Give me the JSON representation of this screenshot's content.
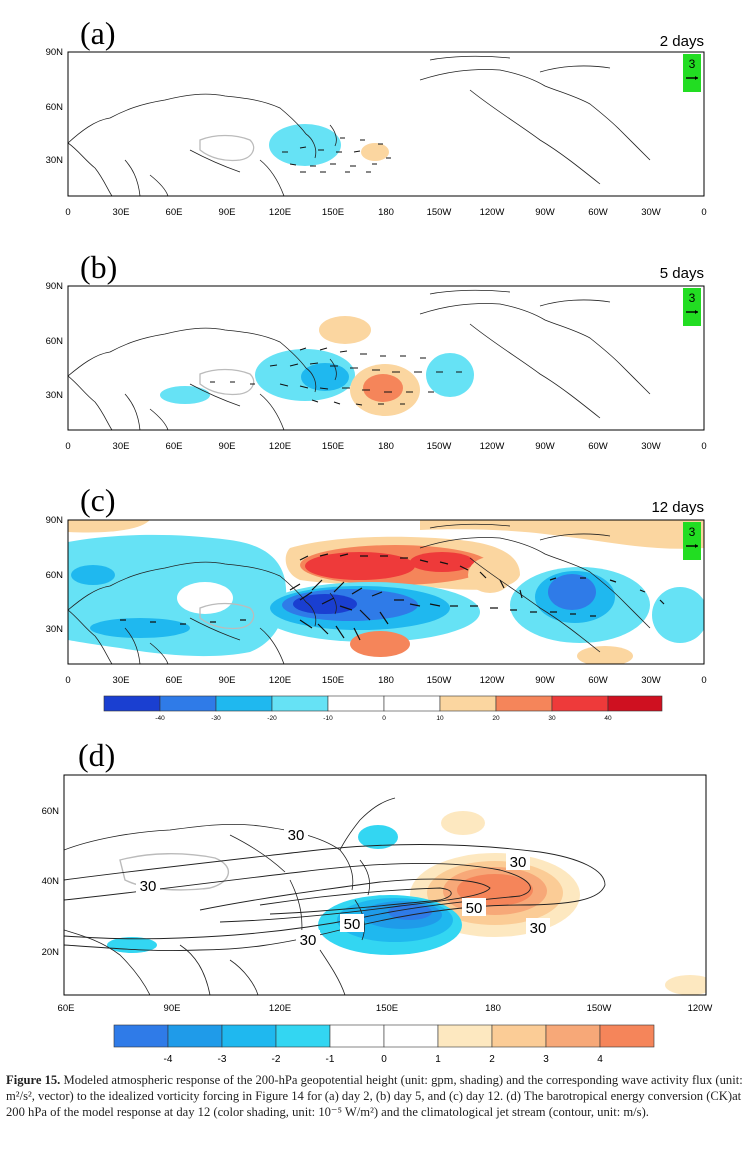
{
  "panels": [
    {
      "letter": "(a)",
      "days_label": "2 days",
      "vector_ref": "3"
    },
    {
      "letter": "(b)",
      "days_label": "5 days",
      "vector_ref": "3"
    },
    {
      "letter": "(c)",
      "days_label": "12 days",
      "vector_ref": "3"
    },
    {
      "letter": "(d)"
    }
  ],
  "map_axes_abc": {
    "y_ticks": [
      "90N",
      "60N",
      "30N"
    ],
    "x_ticks": [
      "0",
      "30E",
      "60E",
      "90E",
      "120E",
      "150E",
      "180",
      "150W",
      "120W",
      "90W",
      "60W",
      "30W",
      "0"
    ]
  },
  "map_axes_d": {
    "y_ticks": [
      "60N",
      "40N",
      "20N"
    ],
    "x_ticks": [
      "60E",
      "90E",
      "120E",
      "150E",
      "180",
      "150W",
      "120W"
    ]
  },
  "colorbar_c": {
    "labels": [
      "-40",
      "-30",
      "-20",
      "-10",
      "0",
      "10",
      "20",
      "30",
      "40"
    ],
    "colors": [
      "#1a3fd1",
      "#2f7be8",
      "#1fb8ef",
      "#66e2f5",
      "#ffffff",
      "#ffffff",
      "#fbd6a0",
      "#f5855a",
      "#ee3a3a",
      "#cf1020"
    ]
  },
  "colorbar_d": {
    "labels": [
      "-4",
      "-3",
      "-2",
      "-1",
      "0",
      "1",
      "2",
      "3",
      "4"
    ],
    "colors": [
      "#2f7be8",
      "#1f9be9",
      "#1fb8ef",
      "#33d6f2",
      "#ffffff",
      "#ffffff",
      "#fde8c0",
      "#fbcc96",
      "#f7a878",
      "#f5855a"
    ]
  },
  "contour_labels_d": [
    "30",
    "30",
    "30",
    "50",
    "50",
    "30",
    "30"
  ],
  "caption": {
    "label": "Figure 15.",
    "text": " Modeled atmospheric response of the 200-hPa geopotential height (unit: gpm, shading) and the corresponding wave activity flux (unit: m²/s², vector) to the idealized vorticity forcing in Figure 14 for (a) day 2, (b) day 5, and (c) day 12. (d) The barotropical energy conversion (CK)at 200 hPa of the model response at day 12 (color shading, unit: 10⁻⁵ W/m²) and the climatological jet stream (contour, unit: m/s)."
  }
}
